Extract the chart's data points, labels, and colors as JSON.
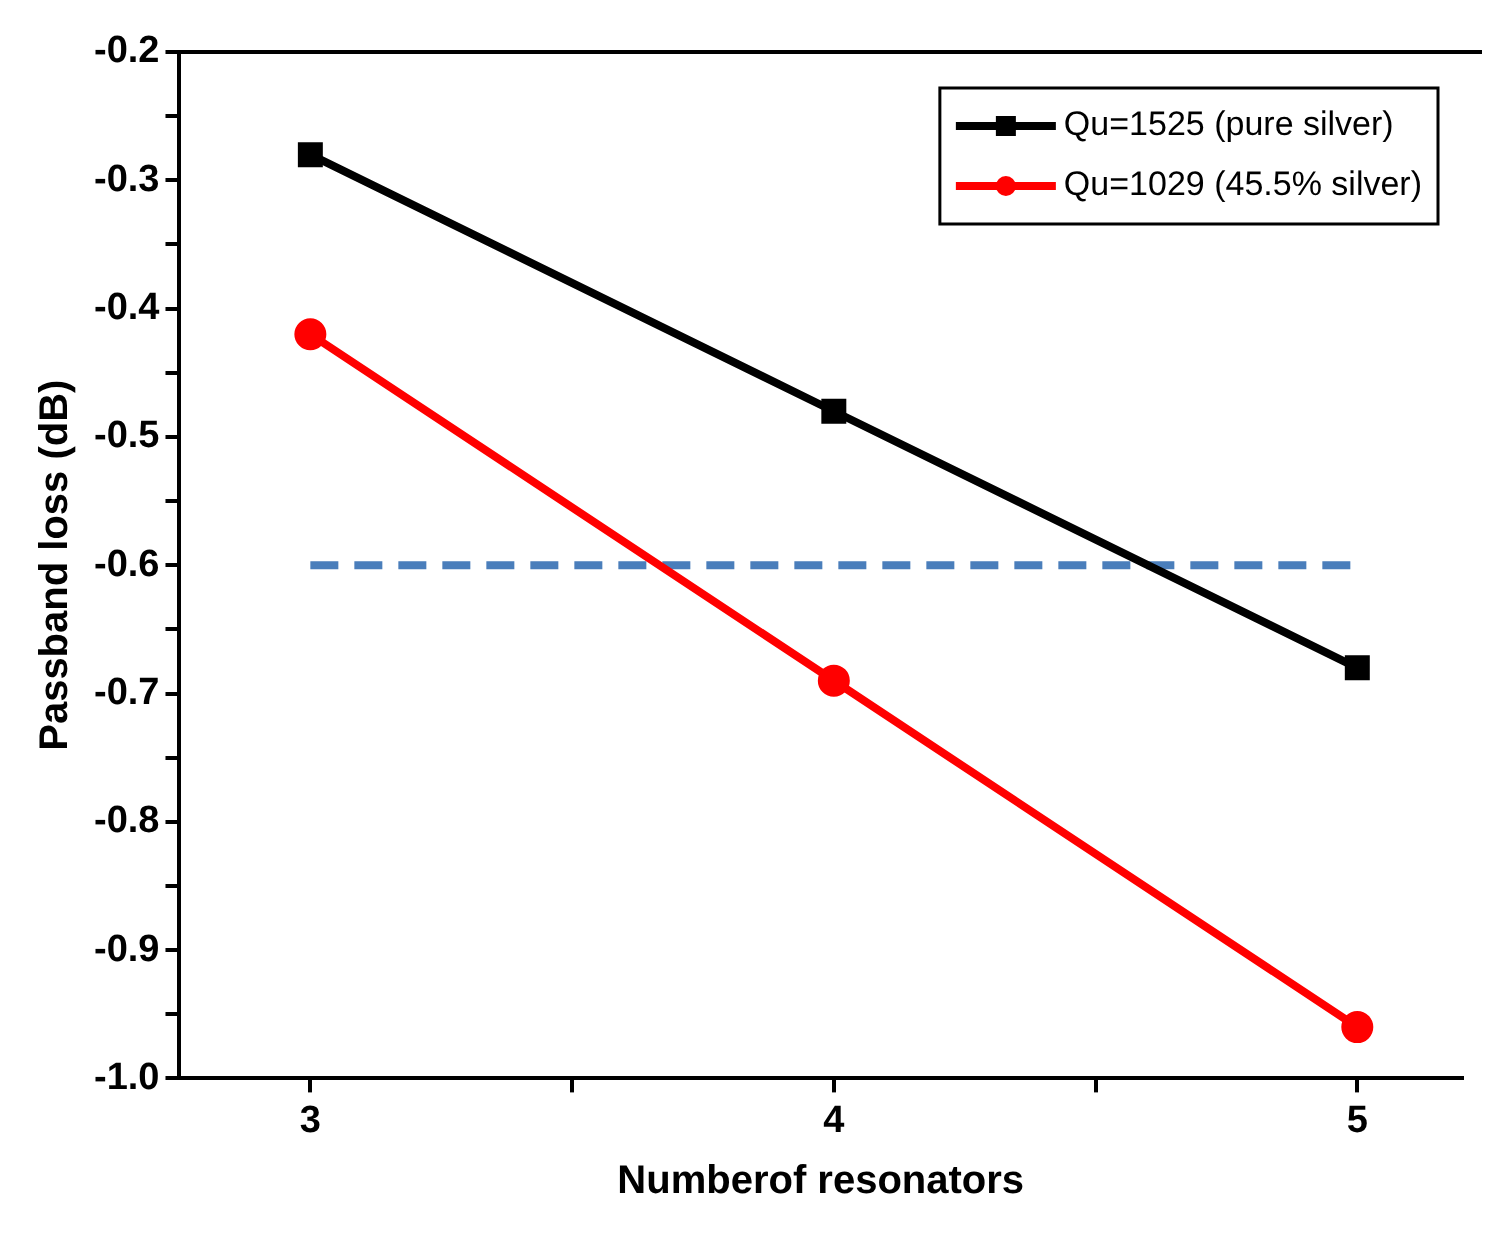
{
  "chart_data": {
    "type": "line",
    "xlabel": "Numberof resonators",
    "ylabel": "Passband loss (dB)",
    "xlim": [
      2.75,
      5.2
    ],
    "xticks": [
      3,
      {
        "value": 3.5,
        "label": null
      },
      4,
      {
        "value": 4.5,
        "label": null
      },
      5
    ],
    "ylim": [
      -1.0,
      -0.2
    ],
    "yticks": [
      {
        "value": -1.0,
        "label": "-1.0"
      },
      {
        "value": -0.95,
        "label": null
      },
      -0.9,
      {
        "value": -0.85,
        "label": null
      },
      -0.8,
      {
        "value": -0.75,
        "label": null
      },
      -0.7,
      {
        "value": -0.65,
        "label": null
      },
      -0.6,
      {
        "value": -0.55,
        "label": null
      },
      -0.5,
      {
        "value": -0.45,
        "label": null
      },
      -0.4,
      {
        "value": -0.35,
        "label": null
      },
      -0.3,
      {
        "value": -0.25,
        "label": null
      },
      -0.2
    ],
    "grid": false,
    "legend": "top right",
    "series": [
      {
        "name": "Qu=1525 (pure silver)",
        "color": "#000000",
        "x": [
          3,
          4,
          5
        ],
        "values": [
          -0.28,
          -0.48,
          -0.68
        ],
        "marker": "square",
        "line_style": "solid"
      },
      {
        "name": "Qu=1029 (45.5% silver)",
        "color": "#ff0000",
        "x": [
          3,
          4,
          5
        ],
        "values": [
          -0.42,
          -0.69,
          -0.96
        ],
        "marker": "circle",
        "line_style": "solid"
      },
      {
        "color": "#4a7ebb",
        "x": [
          3,
          5
        ],
        "values": [
          -0.6,
          -0.6
        ],
        "marker": "none",
        "line_style": "dashed"
      }
    ]
  }
}
